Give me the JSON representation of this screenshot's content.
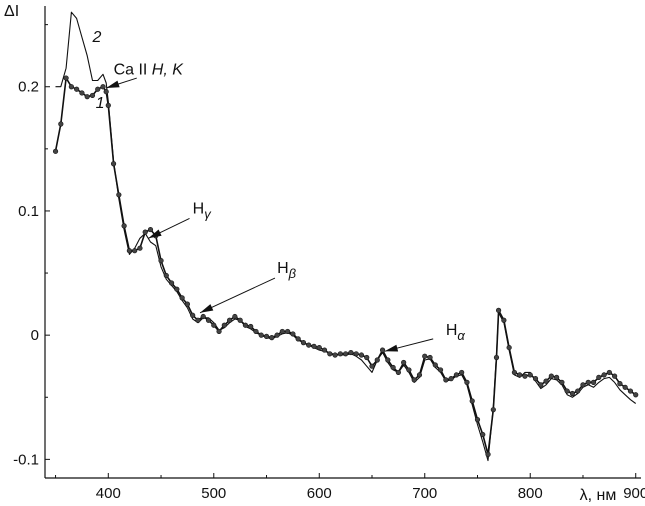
{
  "chart_data": {
    "type": "line",
    "title": "",
    "xlabel": "λ, нм",
    "ylabel": "ΔI",
    "xlim": [
      340,
      905
    ],
    "ylim": [
      -0.115,
      0.265
    ],
    "xticks": [
      {
        "value": 400,
        "label": "400"
      },
      {
        "value": 500,
        "label": "500"
      },
      {
        "value": 600,
        "label": "600"
      },
      {
        "value": 700,
        "label": "700"
      },
      {
        "value": 800,
        "label": "800"
      },
      {
        "value": 900,
        "label": "900"
      }
    ],
    "yticks": [
      {
        "value": 0.2,
        "label": "0.2"
      },
      {
        "value": 0.1,
        "label": "0.1"
      },
      {
        "value": 0,
        "label": "0"
      },
      {
        "value": -0.1,
        "label": "-0.1"
      }
    ],
    "grid": false,
    "legend": "none",
    "series": [
      {
        "name": "1",
        "marker": "circle",
        "x": [
          350,
          355,
          360,
          365,
          370,
          375,
          380,
          385,
          390,
          395,
          398,
          400,
          405,
          410,
          415,
          420,
          425,
          430,
          435,
          440,
          445,
          450,
          455,
          460,
          465,
          470,
          475,
          480,
          485,
          490,
          495,
          500,
          505,
          510,
          515,
          520,
          525,
          530,
          535,
          540,
          545,
          550,
          555,
          560,
          565,
          570,
          575,
          580,
          585,
          590,
          595,
          600,
          605,
          610,
          615,
          620,
          625,
          630,
          635,
          640,
          645,
          650,
          655,
          660,
          665,
          670,
          675,
          680,
          685,
          690,
          695,
          700,
          705,
          710,
          715,
          720,
          725,
          730,
          735,
          740,
          745,
          750,
          755,
          760,
          765,
          768,
          770,
          775,
          780,
          785,
          790,
          795,
          800,
          805,
          810,
          815,
          820,
          825,
          830,
          835,
          840,
          845,
          850,
          855,
          860,
          865,
          870,
          875,
          880,
          885,
          890,
          895,
          900
        ],
        "y": [
          0.148,
          0.17,
          0.207,
          0.2,
          0.198,
          0.195,
          0.192,
          0.193,
          0.198,
          0.2,
          0.196,
          0.185,
          0.138,
          0.113,
          0.088,
          0.068,
          0.068,
          0.07,
          0.083,
          0.085,
          0.08,
          0.06,
          0.048,
          0.042,
          0.037,
          0.03,
          0.025,
          0.016,
          0.012,
          0.015,
          0.012,
          0.008,
          0.003,
          0.008,
          0.012,
          0.015,
          0.012,
          0.008,
          0.007,
          0.003,
          0.0,
          -0.001,
          -0.002,
          0.0,
          0.003,
          0.003,
          0.001,
          -0.003,
          -0.006,
          -0.008,
          -0.009,
          -0.01,
          -0.012,
          -0.015,
          -0.016,
          -0.015,
          -0.015,
          -0.014,
          -0.015,
          -0.016,
          -0.018,
          -0.025,
          -0.02,
          -0.012,
          -0.02,
          -0.026,
          -0.03,
          -0.022,
          -0.028,
          -0.036,
          -0.032,
          -0.017,
          -0.018,
          -0.024,
          -0.028,
          -0.036,
          -0.035,
          -0.032,
          -0.03,
          -0.038,
          -0.053,
          -0.068,
          -0.08,
          -0.096,
          -0.06,
          -0.018,
          0.02,
          0.012,
          -0.01,
          -0.03,
          -0.032,
          -0.033,
          -0.032,
          -0.035,
          -0.04,
          -0.037,
          -0.033,
          -0.034,
          -0.038,
          -0.045,
          -0.047,
          -0.045,
          -0.04,
          -0.038,
          -0.038,
          -0.034,
          -0.032,
          -0.03,
          -0.033,
          -0.039,
          -0.042,
          -0.045,
          -0.048
        ]
      },
      {
        "name": "2",
        "marker": "none",
        "x": [
          350,
          355,
          360,
          365,
          370,
          375,
          380,
          385,
          390,
          395,
          398,
          400,
          405,
          410,
          415,
          420,
          425,
          430,
          435,
          440,
          445,
          450,
          455,
          460,
          465,
          470,
          475,
          480,
          485,
          490,
          495,
          500,
          505,
          510,
          515,
          520,
          525,
          530,
          535,
          540,
          545,
          550,
          555,
          560,
          565,
          570,
          575,
          580,
          585,
          590,
          595,
          600,
          605,
          610,
          615,
          620,
          625,
          630,
          635,
          640,
          645,
          650,
          655,
          660,
          665,
          670,
          675,
          680,
          685,
          690,
          695,
          700,
          705,
          710,
          715,
          720,
          725,
          730,
          735,
          740,
          745,
          750,
          755,
          760,
          765,
          768,
          770,
          775,
          780,
          785,
          790,
          795,
          800,
          805,
          810,
          815,
          820,
          825,
          830,
          835,
          840,
          845,
          850,
          855,
          860,
          865,
          870,
          875,
          880,
          885,
          890,
          895,
          900
        ],
        "y": [
          0.2,
          0.2,
          0.215,
          0.26,
          0.255,
          0.24,
          0.225,
          0.205,
          0.205,
          0.21,
          0.203,
          0.188,
          0.14,
          0.11,
          0.085,
          0.065,
          0.07,
          0.078,
          0.082,
          0.075,
          0.072,
          0.055,
          0.045,
          0.04,
          0.035,
          0.028,
          0.022,
          0.013,
          0.01,
          0.014,
          0.014,
          0.01,
          0.004,
          0.006,
          0.01,
          0.013,
          0.012,
          0.007,
          0.005,
          0.002,
          0.0,
          -0.002,
          -0.003,
          -0.001,
          0.001,
          0.002,
          0.0,
          -0.004,
          -0.006,
          -0.008,
          -0.01,
          -0.012,
          -0.013,
          -0.014,
          -0.016,
          -0.016,
          -0.016,
          -0.015,
          -0.017,
          -0.02,
          -0.025,
          -0.03,
          -0.02,
          -0.014,
          -0.022,
          -0.028,
          -0.03,
          -0.024,
          -0.03,
          -0.038,
          -0.034,
          -0.02,
          -0.019,
          -0.026,
          -0.03,
          -0.037,
          -0.036,
          -0.033,
          -0.032,
          -0.04,
          -0.056,
          -0.072,
          -0.086,
          -0.101,
          -0.058,
          -0.015,
          0.018,
          0.01,
          -0.012,
          -0.032,
          -0.034,
          -0.03,
          -0.03,
          -0.037,
          -0.043,
          -0.04,
          -0.035,
          -0.036,
          -0.04,
          -0.048,
          -0.05,
          -0.047,
          -0.042,
          -0.04,
          -0.042,
          -0.038,
          -0.035,
          -0.034,
          -0.038,
          -0.044,
          -0.048,
          -0.052,
          -0.055
        ]
      }
    ],
    "series_labels": [
      {
        "text": "1",
        "x": 388,
        "y": 0.183
      },
      {
        "text": "2",
        "x": 385,
        "y": 0.236
      }
    ],
    "annotations": [
      {
        "text": "Ca II ",
        "italic": "H, K",
        "x": 405,
        "y": 0.21,
        "point": [
          398,
          0.199
        ],
        "arrow_from": [
          427,
          0.207
        ]
      },
      {
        "text": "H",
        "sub": "γ",
        "x": 480,
        "y": 0.098,
        "point": [
          438,
          0.078
        ],
        "arrow_from": [
          477,
          0.094
        ]
      },
      {
        "text": "H",
        "sub": "β",
        "x": 560,
        "y": 0.05,
        "point": [
          487,
          0.018
        ],
        "arrow_from": [
          558,
          0.046
        ]
      },
      {
        "text": "H",
        "sub": "α",
        "x": 720,
        "y": 0.0,
        "point": [
          662,
          -0.013
        ],
        "arrow_from": [
          708,
          -0.003
        ]
      }
    ]
  }
}
